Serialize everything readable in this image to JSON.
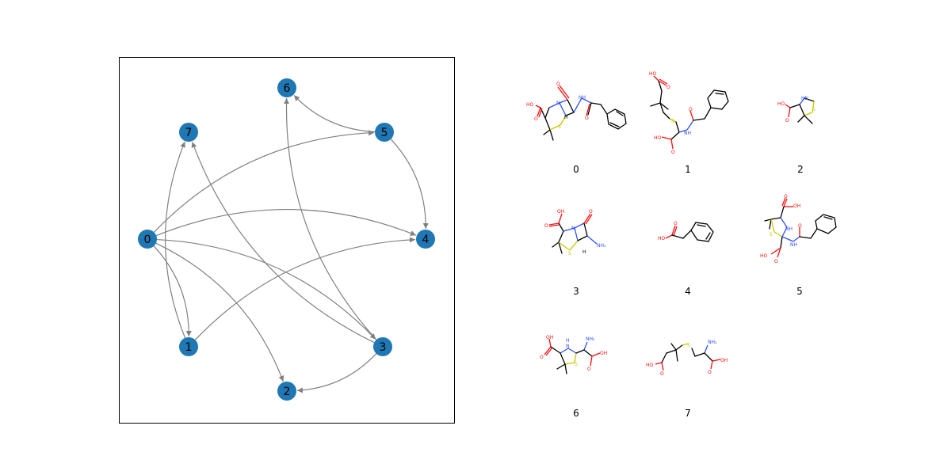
{
  "colors": {
    "node_fill": "#1f77b4",
    "edge": "#808080",
    "frame": "#000000",
    "oxygen": "#ff0d0d",
    "nitrogen": "#3050f8",
    "sulfur": "#c8c800"
  },
  "graph": {
    "nodes": [
      {
        "id": "0",
        "label": "0"
      },
      {
        "id": "1",
        "label": "1"
      },
      {
        "id": "2",
        "label": "2"
      },
      {
        "id": "3",
        "label": "3"
      },
      {
        "id": "4",
        "label": "4"
      },
      {
        "id": "5",
        "label": "5"
      },
      {
        "id": "6",
        "label": "6"
      },
      {
        "id": "7",
        "label": "7"
      }
    ],
    "edges": [
      {
        "source": "0",
        "target": "1"
      },
      {
        "source": "0",
        "target": "2"
      },
      {
        "source": "0",
        "target": "3"
      },
      {
        "source": "0",
        "target": "4"
      },
      {
        "source": "0",
        "target": "5"
      },
      {
        "source": "1",
        "target": "4"
      },
      {
        "source": "1",
        "target": "7"
      },
      {
        "source": "3",
        "target": "2"
      },
      {
        "source": "3",
        "target": "6"
      },
      {
        "source": "3",
        "target": "7"
      },
      {
        "source": "5",
        "target": "4"
      },
      {
        "source": "5",
        "target": "6"
      }
    ]
  },
  "molecules": [
    {
      "label": "0",
      "icon": "penicillin-g-structure",
      "atoms": [
        "O",
        "N",
        "HO",
        "O",
        "S",
        "H",
        "NH",
        "O"
      ]
    },
    {
      "label": "1",
      "icon": "penilloic-acid-structure",
      "atoms": [
        "HO",
        "O",
        "S",
        "HO",
        "O",
        "NH",
        "O"
      ]
    },
    {
      "label": "2",
      "icon": "dimethylthiazolidine-carboxylic-acid-structure",
      "atoms": [
        "HO",
        "O",
        "HN",
        "S"
      ]
    },
    {
      "label": "3",
      "icon": "6-apa-structure",
      "atoms": [
        "OH",
        "O",
        "N",
        "O",
        "S",
        "H",
        "NH₂"
      ]
    },
    {
      "label": "4",
      "icon": "phenylacetic-acid-structure",
      "atoms": [
        "HO",
        "O"
      ]
    },
    {
      "label": "5",
      "icon": "penicilloic-acid-structure",
      "atoms": [
        "OH",
        "O",
        "NH",
        "S",
        "HO",
        "O",
        "NH",
        "O"
      ]
    },
    {
      "label": "6",
      "icon": "penicillamine-thiazolidine-structure",
      "atoms": [
        "OH",
        "O",
        "H",
        "N",
        "S",
        "NH₂",
        "OH",
        "O"
      ]
    },
    {
      "label": "7",
      "icon": "amino-thioether-diacid-structure",
      "atoms": [
        "S",
        "NH₂",
        "HO",
        "O",
        "OH",
        "O"
      ]
    }
  ]
}
